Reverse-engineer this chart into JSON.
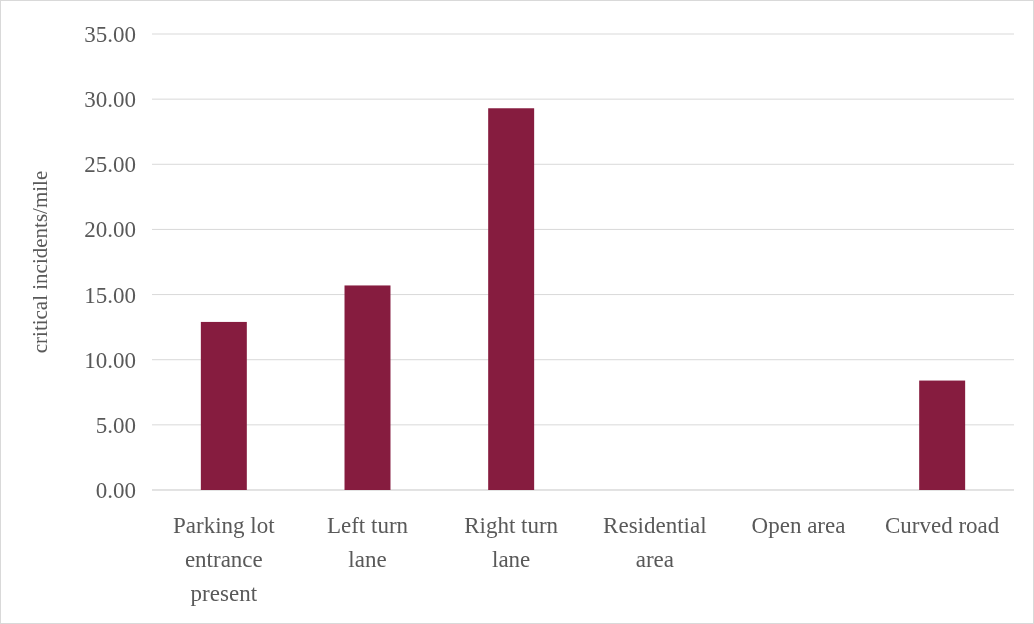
{
  "chart_data": {
    "type": "bar",
    "ylabel": "critical incidents/mile",
    "categories": [
      "Parking lot entrance present",
      "Left turn lane",
      "Right turn lane",
      "Residential area",
      "Open area",
      "Curved road"
    ],
    "values": [
      12.9,
      15.7,
      29.3,
      0,
      0,
      8.4
    ],
    "color": "#861c3f",
    "ylim": [
      0,
      35
    ],
    "yticks": [
      {
        "value": 0,
        "label": "0.00"
      },
      {
        "value": 5,
        "label": "5.00"
      },
      {
        "value": 10,
        "label": "10.00"
      },
      {
        "value": 15,
        "label": "15.00"
      },
      {
        "value": 20,
        "label": "20.00"
      },
      {
        "value": 25,
        "label": "25.00"
      },
      {
        "value": 30,
        "label": "30.00"
      },
      {
        "value": 35,
        "label": "35.00"
      }
    ],
    "grid": "y"
  }
}
